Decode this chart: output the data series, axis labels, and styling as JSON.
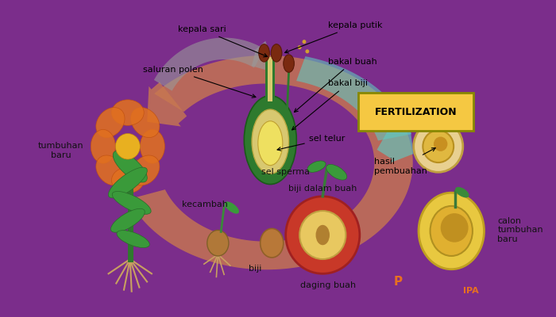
{
  "outer_bg_color": "#7B2D8B",
  "inner_bg_color": "#FFFFFF",
  "labels": {
    "kepala_sari": "kepala sari",
    "saluran_polen": "saluran polen",
    "kepala_putik": "kepala putik",
    "bakal_buah": "bakal buah",
    "bakal_biji": "bakal biji",
    "sel_telur": "sel telur",
    "sel_sperma": "sel sperma",
    "fertilization": "FERTILIZATION",
    "hasil_pembuahan": "hasil\npembuahan",
    "calon_tumbuhan": "calon\ntumbuhan\nbaru",
    "biji_dalam_buah": "biji dalam buah",
    "daging_buah": "daging buah",
    "kecambah": "kecambah",
    "biji": "biji",
    "tumbuhan_baru": "tumbuhan\nbaru"
  },
  "fertilization_box_color": "#F5C842",
  "arrow_color": "#C87850",
  "teal_arrow_color": "#60C8C0",
  "gray_arrow_color": "#999999",
  "label_fontsize": 8,
  "fertilization_fontsize": 9
}
